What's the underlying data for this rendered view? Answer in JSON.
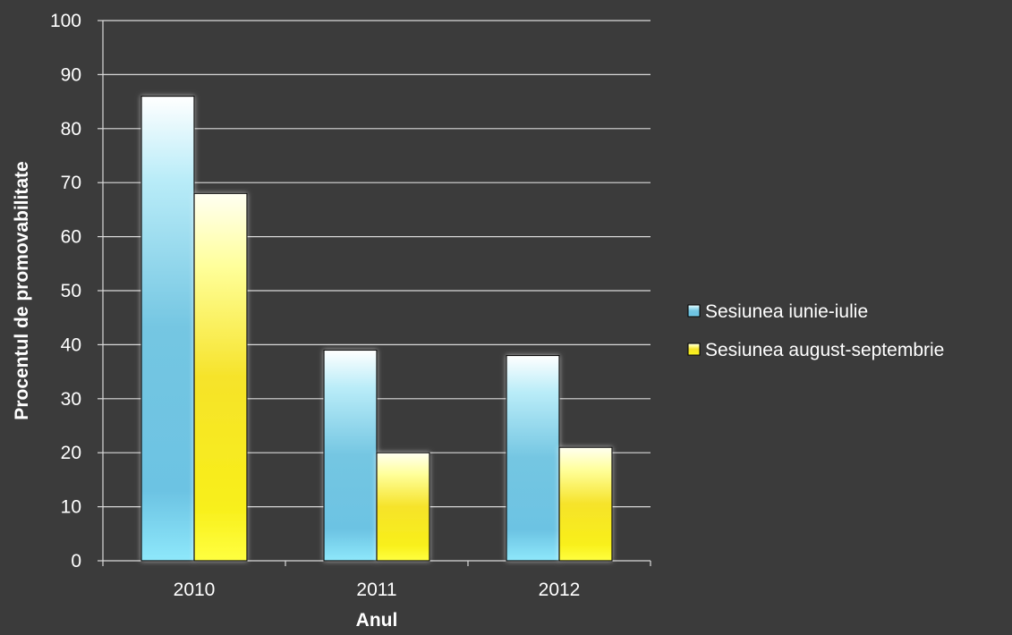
{
  "chart_data": {
    "type": "bar",
    "categories": [
      "2010",
      "2011",
      "2012"
    ],
    "series": [
      {
        "name": "Sesiunea iunie-iulie",
        "values": [
          86,
          39,
          38
        ],
        "color": "#7fd6ee"
      },
      {
        "name": "Sesiunea august-septembrie",
        "values": [
          68,
          20,
          21
        ],
        "color": "#ffff22"
      }
    ],
    "xlabel": "Anul",
    "ylabel": "Procentul de promovabilitate",
    "ylim": [
      0,
      100
    ],
    "yticks": [
      "0",
      "10",
      "20",
      "30",
      "40",
      "50",
      "60",
      "70",
      "80",
      "90",
      "100"
    ],
    "grid": true,
    "legend": "right"
  },
  "colors": {
    "background": "#3b3b3b",
    "grid": "#d9d9d9",
    "text": "#ffffff"
  }
}
